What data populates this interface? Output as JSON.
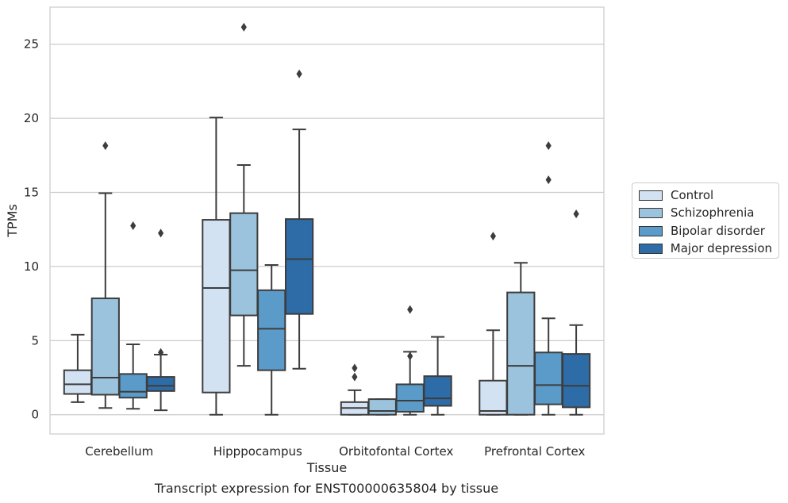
{
  "chart_data": {
    "type": "box",
    "xlabel": "Tissue",
    "ylabel": "TPMs",
    "caption": "Transcript expression for ENST00000635804 by tissue",
    "ylim": [
      -1.3,
      27.5
    ],
    "yticks": [
      0,
      5,
      10,
      15,
      20,
      25
    ],
    "categories": [
      "Cerebellum",
      "Hipppocampus",
      "Orbitofontal Cortex",
      "Prefrontal Cortex"
    ],
    "grid": "horizontal",
    "legend_position": "right",
    "series": [
      {
        "name": "Control",
        "color": "#d3e2f2",
        "boxes": [
          {
            "whislo": 0.85,
            "q1": 1.4,
            "med": 2.05,
            "q3": 3.0,
            "whishi": 5.4,
            "fliers": []
          },
          {
            "whislo": 0.0,
            "q1": 1.5,
            "med": 8.55,
            "q3": 13.15,
            "whishi": 20.05,
            "fliers": []
          },
          {
            "whislo": 0.0,
            "q1": 0.0,
            "med": 0.45,
            "q3": 0.85,
            "whishi": 1.65,
            "fliers": [
              2.55,
              3.15
            ]
          },
          {
            "whislo": 0.0,
            "q1": 0.0,
            "med": 0.25,
            "q3": 2.3,
            "whishi": 5.7,
            "fliers": [
              12.05
            ]
          }
        ]
      },
      {
        "name": "Schizophrenia",
        "color": "#9cc3dd",
        "boxes": [
          {
            "whislo": 0.45,
            "q1": 1.35,
            "med": 2.5,
            "q3": 7.85,
            "whishi": 14.95,
            "fliers": [
              18.15
            ]
          },
          {
            "whislo": 3.3,
            "q1": 6.7,
            "med": 9.75,
            "q3": 13.6,
            "whishi": 16.85,
            "fliers": [
              26.15
            ]
          },
          {
            "whislo": 0.0,
            "q1": 0.0,
            "med": 0.25,
            "q3": 1.05,
            "whishi": 1.05,
            "fliers": []
          },
          {
            "whislo": 0.0,
            "q1": 0.0,
            "med": 3.3,
            "q3": 8.25,
            "whishi": 10.25,
            "fliers": []
          }
        ]
      },
      {
        "name": "Bipolar disorder",
        "color": "#5b9bc9",
        "boxes": [
          {
            "whislo": 0.4,
            "q1": 1.15,
            "med": 1.55,
            "q3": 2.75,
            "whishi": 4.75,
            "fliers": [
              12.75
            ]
          },
          {
            "whislo": 0.0,
            "q1": 3.0,
            "med": 5.8,
            "q3": 8.4,
            "whishi": 10.1,
            "fliers": []
          },
          {
            "whislo": 0.0,
            "q1": 0.2,
            "med": 0.95,
            "q3": 2.05,
            "whishi": 4.25,
            "fliers": [
              3.95,
              7.1
            ]
          },
          {
            "whislo": 0.0,
            "q1": 0.7,
            "med": 2.0,
            "q3": 4.2,
            "whishi": 6.5,
            "fliers": [
              15.85,
              18.15
            ]
          }
        ]
      },
      {
        "name": "Major depression",
        "color": "#2e6ca7",
        "boxes": [
          {
            "whislo": 0.3,
            "q1": 1.6,
            "med": 1.95,
            "q3": 2.55,
            "whishi": 4.05,
            "fliers": [
              4.2,
              12.25
            ]
          },
          {
            "whislo": 3.1,
            "q1": 6.8,
            "med": 10.5,
            "q3": 13.2,
            "whishi": 19.25,
            "fliers": [
              23.0
            ]
          },
          {
            "whislo": 0.0,
            "q1": 0.6,
            "med": 1.1,
            "q3": 2.6,
            "whishi": 5.25,
            "fliers": []
          },
          {
            "whislo": 0.0,
            "q1": 0.5,
            "med": 1.95,
            "q3": 4.1,
            "whishi": 6.05,
            "fliers": [
              13.55
            ]
          }
        ]
      }
    ]
  }
}
